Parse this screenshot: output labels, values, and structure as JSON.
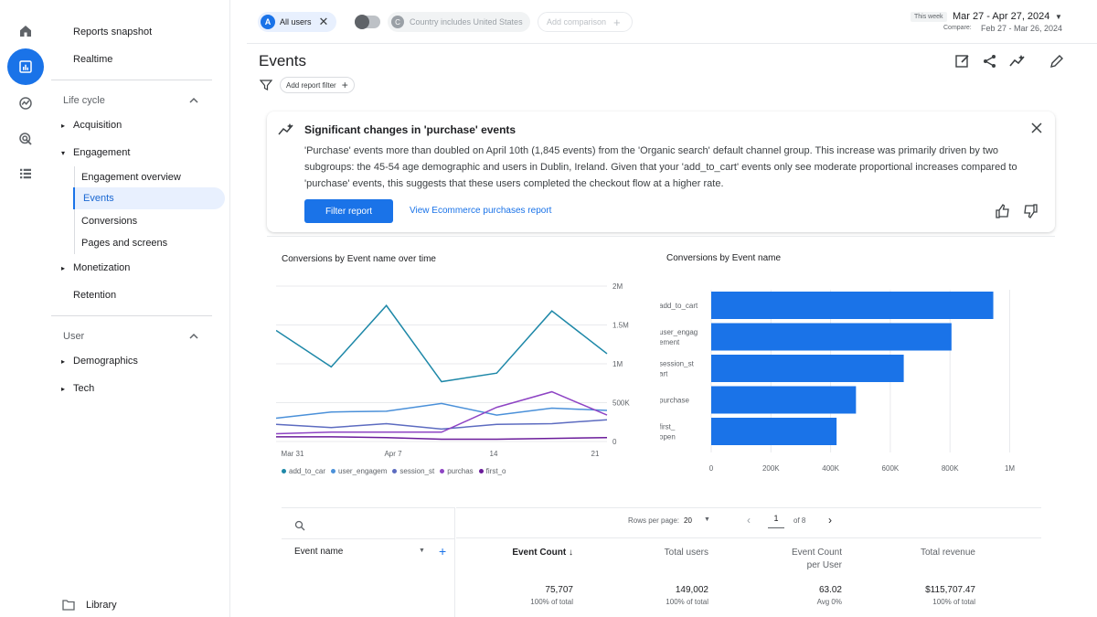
{
  "sidebar": {
    "top_items": [
      "Reports snapshot",
      "Realtime"
    ],
    "lifecycle_label": "Life cycle",
    "acquisition": "Acquisition",
    "engagement": "Engagement",
    "engagement_sub": [
      "Engagement overview",
      "Events",
      "Conversions",
      "Pages and screens"
    ],
    "monetization": "Monetization",
    "retention": "Retention",
    "user_label": "User",
    "demographics": "Demographics",
    "tech": "Tech",
    "library": "Library"
  },
  "topbar": {
    "segment_badge": "A",
    "segment_label": "All users",
    "country_badge": "C",
    "country_filter": "Country includes United States",
    "add_comparison": "Add comparison",
    "date_tag": "This week",
    "date_range": "Mar 27 - Apr 27, 2024",
    "compare_label": "Compare:",
    "compare_range": "Feb 27 - Mar 26, 2024"
  },
  "page": {
    "title": "Events",
    "add_filter": "Add report filter"
  },
  "insight": {
    "title": "Significant changes in 'purchase' events",
    "body": "'Purchase' events more than doubled on April 10th (1,845 events) from the 'Organic search' default channel group. This increase was primarily driven by two subgroups: the 45-54 age demographic and users in Dublin, Ireland. Given that your 'add_to_cart' events only see moderate proportional increases compared to 'purchase' events, this suggests that these users completed the checkout flow at a higher rate.",
    "primary_button": "Filter report",
    "link": "View Ecommerce purchases report"
  },
  "chart_data": [
    {
      "type": "line",
      "title": "Conversions by Event name over time",
      "x_ticks": [
        "Mar 31",
        "Apr 7",
        "14",
        "21"
      ],
      "y_ticks": [
        "2M",
        "1.5M",
        "1M",
        "500K",
        "0"
      ],
      "ylim": [
        0,
        2000000
      ],
      "x": [
        1,
        2,
        3,
        4,
        5,
        6,
        7
      ],
      "series": [
        {
          "name": "add_to_car",
          "color": "#1e88a8",
          "values": [
            1430000,
            960000,
            1750000,
            770000,
            880000,
            1680000,
            1130000
          ]
        },
        {
          "name": "user_engagem",
          "color": "#4a90d9",
          "values": [
            300000,
            380000,
            390000,
            490000,
            340000,
            430000,
            400000
          ]
        },
        {
          "name": "session_st",
          "color": "#5c6bc0",
          "values": [
            220000,
            180000,
            230000,
            160000,
            220000,
            230000,
            280000
          ]
        },
        {
          "name": "purchas",
          "color": "#8e44c4",
          "values": [
            100000,
            120000,
            120000,
            120000,
            440000,
            640000,
            340000
          ]
        },
        {
          "name": "first_o",
          "color": "#6a1b9a",
          "values": [
            60000,
            60000,
            50000,
            30000,
            30000,
            40000,
            50000
          ]
        }
      ]
    },
    {
      "type": "bar",
      "title": "Conversions by Event name",
      "categories": [
        "add_to_cart",
        "user_engagement",
        "session_start",
        "purchase",
        "first_open"
      ],
      "category_labels": [
        [
          "add_to_cart"
        ],
        [
          "user_engag",
          "ement"
        ],
        [
          "session_st",
          "art"
        ],
        [
          "purchase"
        ],
        [
          "first_",
          "open"
        ]
      ],
      "values": [
        945000,
        805000,
        645000,
        485000,
        420000
      ],
      "x_ticks": [
        "0",
        "200K",
        "400K",
        "600K",
        "800K",
        "1M"
      ],
      "xlim": [
        0,
        1000000
      ],
      "color": "#1a73e8"
    }
  ],
  "table": {
    "rows_per_page_label": "Rows per page:",
    "rows_per_page": "20",
    "page_number": "1",
    "page_of": "of 8",
    "col_event_name": "Event name",
    "col_event_count": "Event Count ↓",
    "col_total_users": "Total users",
    "col_event_per_user_1": "Event Count",
    "col_event_per_user_2": "per User",
    "col_total_revenue": "Total revenue",
    "totals": {
      "event_count": "75,707",
      "event_count_sub": "100% of total",
      "total_users": "149,002",
      "total_users_sub": "100% of total",
      "per_user": "63.02",
      "per_user_sub": "Avg 0%",
      "revenue": "$115,707.47",
      "revenue_sub": "100% of total"
    }
  },
  "colors": {
    "accent": "#1a73e8",
    "active_bg": "#e8f0fe"
  }
}
